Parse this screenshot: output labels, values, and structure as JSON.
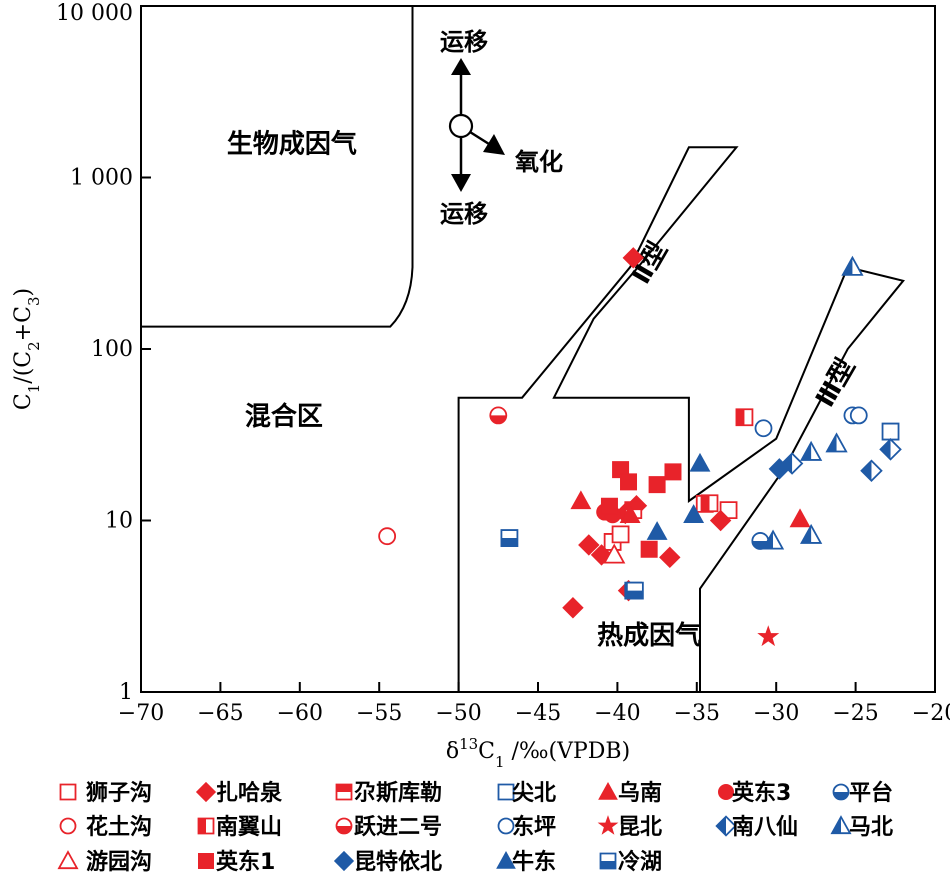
{
  "chart_data": {
    "type": "scatter",
    "x_scale": "linear",
    "y_scale": "log",
    "xlim": [
      -70,
      -20
    ],
    "ylim": [
      1,
      10000
    ],
    "x_ticks": [
      -70,
      -65,
      -60,
      -55,
      -50,
      -45,
      -40,
      -35,
      -30,
      -25,
      -20
    ],
    "x_tick_labels": [
      "−70",
      "−65",
      "−60",
      "−55",
      "−50",
      "−45",
      "−40",
      "−35",
      "−30",
      "−25",
      "−20"
    ],
    "y_ticks": [
      1,
      10,
      100,
      1000,
      10000
    ],
    "y_tick_labels": [
      "1",
      "10",
      "100",
      "1 000",
      "10 000"
    ],
    "xlabel": {
      "p1": "δ",
      "sup": "13",
      "p2": "C",
      "sub": "1",
      "p3": " /‰(VPDB)"
    },
    "ylabel": {
      "p1": "C",
      "s1": "1",
      "p2": "/(C",
      "s2": "2",
      "p3": "+C",
      "s3": "3",
      "p4": ")"
    },
    "regions": [
      {
        "id": "bio",
        "label": "生物成因气",
        "x": -60.5,
        "y": 1400
      },
      {
        "id": "mix",
        "label": "混合区",
        "x": -61,
        "y": 36
      },
      {
        "id": "thermo",
        "label": "热成因气",
        "x": -38,
        "y": 1.9
      },
      {
        "id": "type2",
        "label": "Ⅱ型",
        "x": -37.5,
        "y": 300,
        "rotate": -60
      },
      {
        "id": "type3",
        "label": "Ⅲ型",
        "x": -25.8,
        "y": 60,
        "rotate": -60
      }
    ],
    "trend_labels": {
      "up": "运移",
      "down": "运移",
      "oxidation": "氧化"
    },
    "series": [
      {
        "name": "狮子沟",
        "marker": "square-open",
        "color": "#e8232a",
        "points": [
          [
            -40.3,
            7.5
          ],
          [
            -39.8,
            8.3
          ],
          [
            -34.5,
            12.5
          ],
          [
            -33,
            11.5
          ]
        ]
      },
      {
        "name": "扎哈泉",
        "marker": "diamond",
        "color": "#e8232a",
        "points": [
          [
            -39,
            340
          ],
          [
            -41.8,
            7.2
          ],
          [
            -41,
            6.3
          ],
          [
            -39.3,
            3.9
          ],
          [
            -36.7,
            6.1
          ],
          [
            -38.8,
            12.2
          ],
          [
            -39.5,
            11
          ],
          [
            -33.5,
            10
          ],
          [
            -42.8,
            3.1
          ]
        ]
      },
      {
        "name": "尕斯库勒",
        "marker": "square-half-top",
        "color": "#e8232a",
        "points": [
          [
            -39,
            11.5
          ]
        ]
      },
      {
        "name": "尖北",
        "marker": "square-open",
        "color": "#1f5aa6",
        "points": [
          [
            -22.8,
            33
          ],
          [
            -39,
            3.9
          ]
        ]
      },
      {
        "name": "乌南",
        "marker": "triangle",
        "color": "#e8232a",
        "points": [
          [
            -42.3,
            13
          ],
          [
            -28.5,
            10.2
          ],
          [
            -39.2,
            10.8
          ]
        ]
      },
      {
        "name": "英东3",
        "marker": "circle",
        "color": "#e8232a",
        "points": [
          [
            -40.8,
            11.2
          ],
          [
            -40.3,
            10.8
          ]
        ]
      },
      {
        "name": "平台",
        "marker": "circle-half-bottom",
        "color": "#1f5aa6",
        "points": [
          [
            -31,
            7.6
          ]
        ]
      },
      {
        "name": "花土沟",
        "marker": "circle-open",
        "color": "#e8232a",
        "points": [
          [
            -54.5,
            8.1
          ]
        ]
      },
      {
        "name": "南翼山",
        "marker": "square-half-left",
        "color": "#e8232a",
        "points": [
          [
            -32,
            40
          ],
          [
            -34.2,
            12.6
          ]
        ]
      },
      {
        "name": "跃进二号",
        "marker": "circle-half-bottom",
        "color": "#e8232a",
        "points": [
          [
            -47.5,
            41
          ]
        ]
      },
      {
        "name": "东坪",
        "marker": "circle-open",
        "color": "#1f5aa6",
        "points": [
          [
            -30.8,
            34.5
          ],
          [
            -25.2,
            41
          ],
          [
            -24.8,
            41
          ]
        ]
      },
      {
        "name": "昆北",
        "marker": "star",
        "color": "#e8232a",
        "points": [
          [
            -30.5,
            2.1
          ]
        ]
      },
      {
        "name": "南八仙",
        "marker": "diamond-half-left",
        "color": "#1f5aa6",
        "points": [
          [
            -29,
            21.5
          ],
          [
            -24,
            19.5
          ],
          [
            -22.8,
            26
          ]
        ]
      },
      {
        "name": "马北",
        "marker": "triangle-half-left",
        "color": "#1f5aa6",
        "points": [
          [
            -25.2,
            300
          ],
          [
            -26.2,
            28
          ],
          [
            -27.8,
            25
          ],
          [
            -30.2,
            7.6
          ],
          [
            -27.8,
            8.2
          ]
        ]
      },
      {
        "name": "游园沟",
        "marker": "triangle-open",
        "color": "#e8232a",
        "points": [
          [
            -40.2,
            6.3
          ]
        ]
      },
      {
        "name": "英东1",
        "marker": "square",
        "color": "#e8232a",
        "points": [
          [
            -39.8,
            19.8
          ],
          [
            -39.3,
            16.8
          ],
          [
            -37.5,
            16.2
          ],
          [
            -36.5,
            19.2
          ],
          [
            -40.5,
            12.1
          ],
          [
            -38,
            6.8
          ]
        ]
      },
      {
        "name": "昆特依北",
        "marker": "diamond",
        "color": "#1f5aa6",
        "points": [
          [
            -29.8,
            20
          ]
        ]
      },
      {
        "name": "牛东",
        "marker": "triangle",
        "color": "#1f5aa6",
        "points": [
          [
            -34.8,
            21.5
          ],
          [
            -37.5,
            8.6
          ],
          [
            -35.2,
            10.8
          ]
        ]
      },
      {
        "name": "冷湖",
        "marker": "square-half-bottom",
        "color": "#1f5aa6",
        "points": [
          [
            -46.8,
            7.9
          ],
          [
            -38.9,
            3.9
          ]
        ]
      }
    ]
  }
}
